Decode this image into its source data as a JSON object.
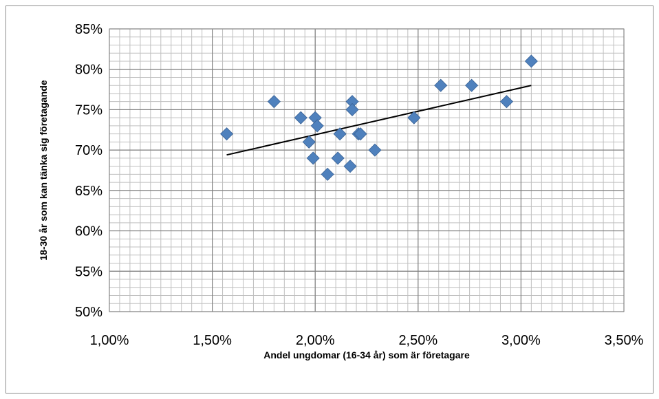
{
  "chart_data": {
    "type": "scatter",
    "title": "",
    "xlabel": "Andel ungdomar (16-34 år) som är företagare",
    "ylabel": "18-30 år som kan tänka sig företagande",
    "xlim": [
      1.0,
      3.5
    ],
    "ylim": [
      50,
      85
    ],
    "x_ticks": [
      1.0,
      1.5,
      2.0,
      2.5,
      3.0,
      3.5
    ],
    "x_tick_labels": [
      "1,00%",
      "1,50%",
      "2,00%",
      "2,50%",
      "3,00%",
      "3,50%"
    ],
    "y_ticks": [
      50,
      55,
      60,
      65,
      70,
      75,
      80,
      85
    ],
    "y_tick_labels": [
      "50%",
      "55%",
      "60%",
      "65%",
      "70%",
      "75%",
      "80%",
      "85%"
    ],
    "grid": {
      "major": true,
      "minor": true,
      "x_minor_step": 0.05,
      "y_minor_step": 1
    },
    "legend": "none",
    "series": [
      {
        "marker": "diamond",
        "color": "#4f81bd",
        "points": [
          [
            1.57,
            72
          ],
          [
            1.8,
            76
          ],
          [
            1.93,
            74
          ],
          [
            1.97,
            71
          ],
          [
            1.99,
            69
          ],
          [
            2.0,
            74
          ],
          [
            2.01,
            73
          ],
          [
            2.06,
            67
          ],
          [
            2.11,
            69
          ],
          [
            2.12,
            72
          ],
          [
            2.17,
            68
          ],
          [
            2.18,
            76
          ],
          [
            2.18,
            75
          ],
          [
            2.21,
            72
          ],
          [
            2.22,
            72
          ],
          [
            2.29,
            70
          ],
          [
            2.48,
            74
          ],
          [
            2.61,
            78
          ],
          [
            2.76,
            78
          ],
          [
            2.93,
            76
          ],
          [
            3.05,
            81
          ]
        ]
      }
    ],
    "trendline": {
      "type": "linear",
      "color": "#000000",
      "x_range": [
        1.57,
        3.05
      ],
      "y_range": [
        69.4,
        78.0
      ]
    }
  }
}
